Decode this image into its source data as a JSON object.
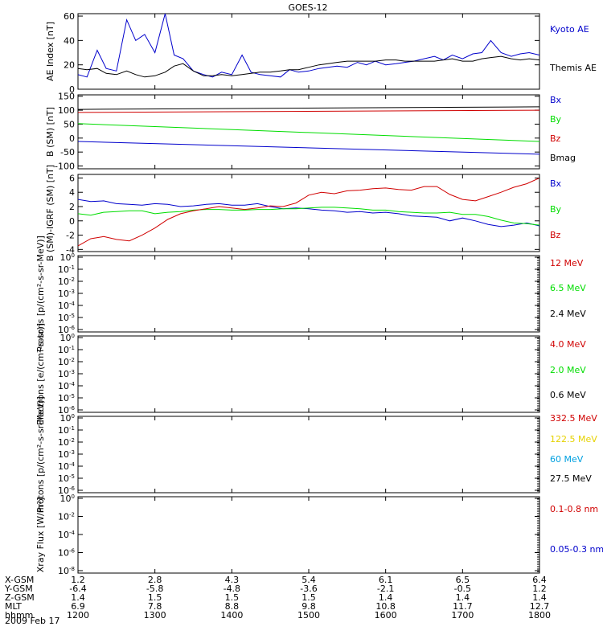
{
  "title": "GOES-12",
  "date_label": "2009 Feb 17",
  "colors": {
    "black": "#000000",
    "red": "#d00000",
    "green": "#00dd00",
    "blue": "#0000cc",
    "yellow": "#e6d200",
    "cyan": "#00a0e0"
  },
  "orbit": {
    "rows": [
      {
        "label": "X-GSM",
        "values": [
          "1.2",
          "2.8",
          "4.3",
          "5.4",
          "6.1",
          "6.5",
          "6.4"
        ]
      },
      {
        "label": "Y-GSM",
        "values": [
          "-6.4",
          "-5.8",
          "-4.8",
          "-3.6",
          "-2.1",
          "-0.5",
          "1.2"
        ]
      },
      {
        "label": "Z-GSM",
        "values": [
          "1.4",
          "1.5",
          "1.5",
          "1.5",
          "1.4",
          "1.4",
          "1.4"
        ]
      },
      {
        "label": "MLT",
        "values": [
          "6.9",
          "7.8",
          "8.8",
          "9.8",
          "10.8",
          "11.7",
          "12.7"
        ]
      },
      {
        "label": "hhmm",
        "values": [
          "1200",
          "1300",
          "1400",
          "1500",
          "1600",
          "1700",
          "1800"
        ]
      }
    ]
  },
  "chart_data": [
    {
      "type": "line",
      "ylabel": "AE Index [nT]",
      "ylim": [
        0,
        62
      ],
      "yticks": [
        "0",
        "20",
        "40",
        "60"
      ],
      "x": [
        1200,
        1207,
        1215,
        1222,
        1230,
        1238,
        1245,
        1252,
        1300,
        1308,
        1315,
        1322,
        1330,
        1338,
        1345,
        1352,
        1400,
        1408,
        1415,
        1422,
        1430,
        1438,
        1445,
        1452,
        1500,
        1508,
        1515,
        1522,
        1530,
        1538,
        1545,
        1552,
        1600,
        1608,
        1615,
        1622,
        1630,
        1638,
        1645,
        1652,
        1700,
        1708,
        1715,
        1722,
        1730,
        1738,
        1745,
        1752,
        1800
      ],
      "series": [
        {
          "name": "Kyoto AE",
          "color": "blue",
          "values": [
            12,
            10,
            32,
            17,
            15,
            57,
            40,
            45,
            30,
            62,
            28,
            25,
            15,
            12,
            10,
            14,
            12,
            28,
            14,
            12,
            11,
            10,
            16,
            14,
            15,
            17,
            18,
            19,
            18,
            22,
            20,
            23,
            20,
            21,
            22,
            23,
            25,
            27,
            24,
            28,
            25,
            29,
            30,
            40,
            30,
            27,
            29,
            30,
            28
          ]
        },
        {
          "name": "Themis AE",
          "color": "black",
          "values": [
            17,
            16,
            17,
            13,
            12,
            15,
            12,
            10,
            11,
            14,
            19,
            21,
            15,
            11,
            11,
            12,
            11,
            12,
            13,
            14,
            14,
            15,
            16,
            16,
            18,
            20,
            21,
            22,
            23,
            23,
            23,
            23,
            24,
            24,
            23,
            23,
            23,
            23,
            24,
            25,
            23,
            23,
            25,
            26,
            27,
            25,
            24,
            25,
            24
          ]
        }
      ]
    },
    {
      "type": "line",
      "ylabel": "B (SM) [nT]",
      "ylim": [
        -110,
        155
      ],
      "yticks": [
        "-100",
        "-50",
        "0",
        "50",
        "100",
        "150"
      ],
      "x": [
        1200,
        1800
      ],
      "series": [
        {
          "name": "Bx",
          "color": "blue",
          "values": [
            -12,
            -58
          ]
        },
        {
          "name": "By",
          "color": "green",
          "values": [
            52,
            -12
          ]
        },
        {
          "name": "Bz",
          "color": "red",
          "values": [
            92,
            100
          ]
        },
        {
          "name": "Bmag",
          "color": "black",
          "values": [
            103,
            112
          ]
        }
      ]
    },
    {
      "type": "line",
      "ylabel": "B (SM)-IGRF (SM) [nT]",
      "ylim": [
        -4.3,
        6.5
      ],
      "yticks": [
        "-4",
        "-2",
        "0",
        "2",
        "4",
        "6"
      ],
      "x": [
        1200,
        1210,
        1220,
        1230,
        1240,
        1250,
        1300,
        1310,
        1320,
        1330,
        1340,
        1350,
        1400,
        1410,
        1420,
        1430,
        1440,
        1450,
        1500,
        1510,
        1520,
        1530,
        1540,
        1550,
        1600,
        1610,
        1620,
        1630,
        1640,
        1650,
        1700,
        1710,
        1720,
        1730,
        1740,
        1750,
        1800
      ],
      "series": [
        {
          "name": "Bx",
          "color": "blue",
          "values": [
            3.0,
            2.7,
            2.8,
            2.4,
            2.3,
            2.2,
            2.4,
            2.3,
            2.0,
            2.1,
            2.3,
            2.4,
            2.2,
            2.2,
            2.4,
            2.0,
            1.7,
            1.8,
            1.7,
            1.5,
            1.4,
            1.2,
            1.3,
            1.1,
            1.2,
            1.0,
            0.7,
            0.6,
            0.5,
            0.0,
            0.4,
            0.0,
            -0.5,
            -0.8,
            -0.6,
            -0.3,
            -0.7
          ]
        },
        {
          "name": "By",
          "color": "green",
          "values": [
            1.0,
            0.8,
            1.2,
            1.3,
            1.4,
            1.4,
            1.0,
            1.2,
            1.3,
            1.5,
            1.6,
            1.6,
            1.5,
            1.5,
            1.6,
            1.6,
            1.7,
            1.7,
            1.8,
            1.9,
            1.9,
            1.8,
            1.7,
            1.5,
            1.5,
            1.3,
            1.2,
            1.1,
            1.1,
            1.2,
            0.9,
            0.9,
            0.6,
            0.1,
            -0.3,
            -0.4,
            -0.6
          ]
        },
        {
          "name": "Bz",
          "color": "red",
          "values": [
            -3.5,
            -2.5,
            -2.2,
            -2.6,
            -2.8,
            -2.0,
            -1.0,
            0.2,
            1.0,
            1.4,
            1.7,
            2.0,
            1.8,
            1.6,
            1.8,
            2.1,
            2.0,
            2.5,
            3.6,
            4.0,
            3.8,
            4.2,
            4.3,
            4.5,
            4.6,
            4.4,
            4.3,
            4.8,
            4.8,
            3.7,
            3.0,
            2.8,
            3.4,
            4.0,
            4.7,
            5.2,
            6.0
          ]
        }
      ]
    },
    {
      "type": "line",
      "ylabel": "Protons [p/(cm²-s-sr-MeV)]",
      "log": true,
      "ytick_exp": [
        "0",
        "-1",
        "-2",
        "-3",
        "-4",
        "-5",
        "-6"
      ],
      "series": [
        {
          "name": "12 MeV",
          "color": "red",
          "values": []
        },
        {
          "name": "6.5 MeV",
          "color": "green",
          "values": []
        },
        {
          "name": "2.4 MeV",
          "color": "black",
          "values": []
        }
      ]
    },
    {
      "type": "line",
      "ylabel": "Electrons [e/(cm²-s-sr)]",
      "log": true,
      "ytick_exp": [
        "0",
        "-1",
        "-2",
        "-3",
        "-4",
        "-5",
        "-6"
      ],
      "series": [
        {
          "name": "4.0 MeV",
          "color": "red",
          "values": []
        },
        {
          "name": "2.0 MeV",
          "color": "green",
          "values": []
        },
        {
          "name": "0.6 MeV",
          "color": "black",
          "values": []
        }
      ]
    },
    {
      "type": "line",
      "ylabel": "Protons [p/(cm²-s-sr-MeV)]",
      "log": true,
      "ytick_exp": [
        "0",
        "-1",
        "-2",
        "-3",
        "-4",
        "-5",
        "-6"
      ],
      "series": [
        {
          "name": "332.5 MeV",
          "color": "red",
          "values": []
        },
        {
          "name": "122.5 MeV",
          "color": "yellow",
          "values": []
        },
        {
          "name": "60 MeV",
          "color": "cyan",
          "values": []
        },
        {
          "name": "27.5 MeV",
          "color": "black",
          "values": []
        }
      ]
    },
    {
      "type": "line",
      "ylabel": "Xray Flux [W/m²]",
      "log": true,
      "ytick_exp": [
        "0",
        "-2",
        "-4",
        "-6",
        "-8"
      ],
      "series": [
        {
          "name": "0.1-0.8 nm",
          "color": "red",
          "values": []
        },
        {
          "name": "0.05-0.3 nm",
          "color": "blue",
          "values": []
        }
      ]
    }
  ]
}
